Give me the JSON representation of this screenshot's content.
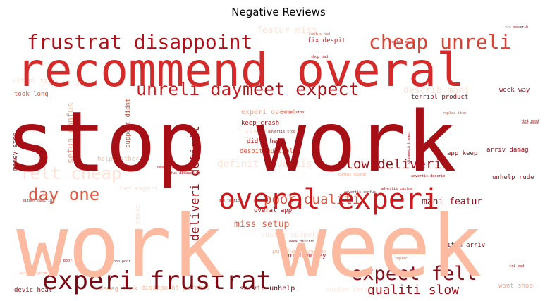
{
  "title": "Negative Reviews",
  "chart_data": {
    "type": "wordcloud",
    "title": "Negative Reviews",
    "words": [
      {
        "text": "work week",
        "weight": 1.0,
        "color": "#fcbba1",
        "orientation": "horizontal"
      },
      {
        "text": "stop work",
        "weight": 0.95,
        "color": "#a50f15",
        "orientation": "horizontal"
      },
      {
        "text": "recommend overal",
        "weight": 0.6,
        "color": "#d42a2a",
        "orientation": "horizontal"
      },
      {
        "text": "overal experi",
        "weight": 0.38,
        "color": "#cb181d",
        "orientation": "horizontal"
      },
      {
        "text": "experi frustrat",
        "weight": 0.36,
        "color": "#7b0a14",
        "orientation": "horizontal"
      },
      {
        "text": "frustrat disappoint",
        "weight": 0.28,
        "color": "#b3111a",
        "orientation": "horizontal"
      },
      {
        "text": "cheap unreli",
        "weight": 0.28,
        "color": "#de4133",
        "orientation": "horizontal"
      },
      {
        "text": "unreli day",
        "weight": 0.25,
        "color": "#c91b1f",
        "orientation": "horizontal"
      },
      {
        "text": "meet expect",
        "weight": 0.25,
        "color": "#a81016",
        "orientation": "horizontal"
      },
      {
        "text": "expect felt",
        "weight": 0.25,
        "color": "#8e0c17",
        "orientation": "horizontal"
      },
      {
        "text": "felt cheap",
        "weight": 0.24,
        "color": "#fde3d8",
        "orientation": "horizontal"
      },
      {
        "text": "day one",
        "weight": 0.24,
        "color": "#e0553c",
        "orientation": "horizontal"
      },
      {
        "text": "poor qualiti",
        "weight": 0.19,
        "color": "#e0553c",
        "orientation": "horizontal"
      },
      {
        "text": "slow deliveri",
        "weight": 0.19,
        "color": "#a50f15",
        "orientation": "horizontal"
      },
      {
        "text": "qualiti slow",
        "weight": 0.18,
        "color": "#9e0d17",
        "orientation": "horizontal"
      },
      {
        "text": "deliveri definit",
        "weight": 0.17,
        "color": "#a30f17",
        "orientation": "vertical"
      },
      {
        "text": "featur miss",
        "weight": 0.12,
        "color": "#fde3d8",
        "orientation": "horizontal"
      },
      {
        "text": "describ mani",
        "weight": 0.12,
        "color": "#fde0d2",
        "orientation": "horizontal"
      },
      {
        "text": "mani featur",
        "weight": 0.12,
        "color": "#8e0c17",
        "orientation": "horizontal"
      },
      {
        "text": "miss setup",
        "weight": 0.12,
        "color": "#e46449",
        "orientation": "horizontal"
      },
      {
        "text": "setup confus",
        "weight": 0.1,
        "color": "#f8a185",
        "orientation": "vertical"
      },
      {
        "text": "definit advertis",
        "weight": 0.1,
        "color": "#fde3d8",
        "orientation": "horizontal"
      },
      {
        "text": "week way",
        "weight": 0.08,
        "color": "#9e0d17",
        "orientation": "horizontal"
      },
      {
        "text": "crash devic",
        "weight": 0.08,
        "color": "#fde0d2",
        "orientation": "vertical"
      },
      {
        "text": "product worth",
        "weight": 0.07,
        "color": "#fde3d8",
        "orientation": "horizontal"
      },
      {
        "text": "fix despit",
        "weight": 0.07,
        "color": "#c91b1f",
        "orientation": "horizontal"
      },
      {
        "text": "took long",
        "weight": 0.07,
        "color": "#e0553c",
        "orientation": "horizontal"
      },
      {
        "text": "terribl product",
        "weight": 0.07,
        "color": "#a50f15",
        "orientation": "horizontal"
      },
      {
        "text": "experi overal",
        "weight": 0.07,
        "color": "#f8a185",
        "orientation": "horizontal"
      },
      {
        "text": "keep crash",
        "weight": 0.07,
        "color": "#a50f15",
        "orientation": "horizontal"
      },
      {
        "text": "didnt help",
        "weight": 0.07,
        "color": "#a50f15",
        "orientation": "horizontal"
      },
      {
        "text": "despit multipl",
        "weight": 0.07,
        "color": "#e0553c",
        "orientation": "horizontal"
      },
      {
        "text": "help either",
        "weight": 0.07,
        "color": "#fcbba1",
        "orientation": "horizontal"
      },
      {
        "text": "bad experi",
        "weight": 0.07,
        "color": "#fde0d2",
        "orientation": "horizontal"
      },
      {
        "text": "overal app",
        "weight": 0.07,
        "color": "#a50f15",
        "orientation": "horizontal"
      },
      {
        "text": "arriv damag",
        "weight": 0.07,
        "color": "#8e0c17",
        "orientation": "horizontal"
      },
      {
        "text": "unhelp rude",
        "weight": 0.07,
        "color": "#a50f15",
        "orientation": "horizontal"
      },
      {
        "text": "app keep",
        "weight": 0.07,
        "color": "#a50f15",
        "orientation": "horizontal"
      },
      {
        "text": "item arriv",
        "weight": 0.07,
        "color": "#a50f15",
        "orientation": "horizontal"
      },
      {
        "text": "worth money",
        "weight": 0.07,
        "color": "#a50f15",
        "orientation": "horizontal"
      },
      {
        "text": "servic unhelp",
        "weight": 0.07,
        "color": "#7b0a14",
        "orientation": "horizontal"
      },
      {
        "text": "disappoint purchas",
        "weight": 0.07,
        "color": "#fcbba1",
        "orientation": "horizontal"
      },
      {
        "text": "damag took",
        "weight": 0.07,
        "color": "#f8a185",
        "orientation": "horizontal"
      },
      {
        "text": "devic heat",
        "weight": 0.07,
        "color": "#a50f15",
        "orientation": "horizontal"
      },
      {
        "text": "wont shop",
        "weight": 0.07,
        "color": "#f8a185",
        "orientation": "horizontal"
      },
      {
        "text": "custom servic",
        "weight": 0.07,
        "color": "#fde3d8",
        "orientation": "horizontal"
      },
      {
        "text": "purchas custom",
        "weight": 0.07,
        "color": "#fcbba1",
        "orientation": "horizontal"
      },
      {
        "text": "custom support",
        "weight": 0.07,
        "color": "#fde3d8",
        "orientation": "horizontal"
      },
      {
        "text": "money stop",
        "weight": 0.07,
        "color": "#a50f15",
        "orientation": "vertical"
      },
      {
        "text": "support didnt",
        "weight": 0.07,
        "color": "#e0553c",
        "orientation": "vertical"
      },
      {
        "text": "multipl ti",
        "weight": 0.07,
        "color": "#fde0d2",
        "orientation": "horizontal"
      },
      {
        "text": "stay fix",
        "weight": 0.07,
        "color": "#fde0d2",
        "orientation": "horizontal"
      },
      {
        "text": "either describ",
        "weight": 0.04,
        "color": "#a50f15",
        "orientation": "horizontal"
      },
      {
        "text": "confus stop",
        "weight": 0.04,
        "color": "#a50f15",
        "orientation": "horizontal"
      },
      {
        "text": "one terribl",
        "weight": 0.04,
        "color": "#a50f15",
        "orientation": "horizontal"
      },
      {
        "text": "advertis describ",
        "weight": 0.04,
        "color": "#a50f15",
        "orientation": "horizontal"
      },
      {
        "text": "confus disappoint",
        "weight": 0.04,
        "color": "#a50f15",
        "orientation": "horizontal"
      },
      {
        "text": "disappoint mani",
        "weight": 0.04,
        "color": "#a50f15",
        "orientation": "vertical"
      },
      {
        "text": "replac meet",
        "weight": 0.04,
        "color": "#a50f15",
        "orientation": "horizontal"
      },
      {
        "text": "shop bad",
        "weight": 0.04,
        "color": "#a50f15",
        "orientation": "horizontal"
      },
      {
        "text": "tri describ",
        "weight": 0.04,
        "color": "#a50f15",
        "orientation": "horizontal"
      },
      {
        "text": "tri bad",
        "weight": 0.04,
        "color": "#a50f15",
        "orientation": "horizontal"
      },
      {
        "text": "tri meet",
        "weight": 0.04,
        "color": "#a50f15",
        "orientation": "horizontal"
      },
      {
        "text": "tri poor",
        "weight": 0.04,
        "color": "#a50f15",
        "orientation": "horizontal"
      },
      {
        "text": "shop poor",
        "weight": 0.04,
        "color": "#a50f15",
        "orientation": "horizontal"
      },
      {
        "text": "replac",
        "weight": 0.04,
        "color": "#e0553c",
        "orientation": "horizontal"
      },
      {
        "text": "replac item",
        "weight": 0.04,
        "color": "#e0553c",
        "orientation": "horizontal"
      },
      {
        "text": "one meet",
        "weight": 0.04,
        "color": "#a50f15",
        "orientation": "horizontal"
      },
      {
        "text": "heat stop",
        "weight": 0.04,
        "color": "#a50f15",
        "orientation": "horizontal"
      },
      {
        "text": "confus custom",
        "weight": 0.04,
        "color": "#f8a185",
        "orientation": "horizontal"
      },
      {
        "text": "advertis confus",
        "weight": 0.04,
        "color": "#a50f15",
        "orientation": "horizontal"
      },
      {
        "text": "confus bad",
        "weight": 0.04,
        "color": "#e0553c",
        "orientation": "horizontal"
      },
      {
        "text": "week describ",
        "weight": 0.04,
        "color": "#a50f15",
        "orientation": "horizontal"
      },
      {
        "text": "advertis stop",
        "weight": 0.04,
        "color": "#a50f15",
        "orientation": "horizontal"
      },
      {
        "text": "advertis custom",
        "weight": 0.04,
        "color": "#a50f15",
        "orientation": "horizontal"
      },
      {
        "text": "either custom",
        "weight": 0.04,
        "color": "#f8a185",
        "orientation": "horizontal"
      }
    ]
  }
}
